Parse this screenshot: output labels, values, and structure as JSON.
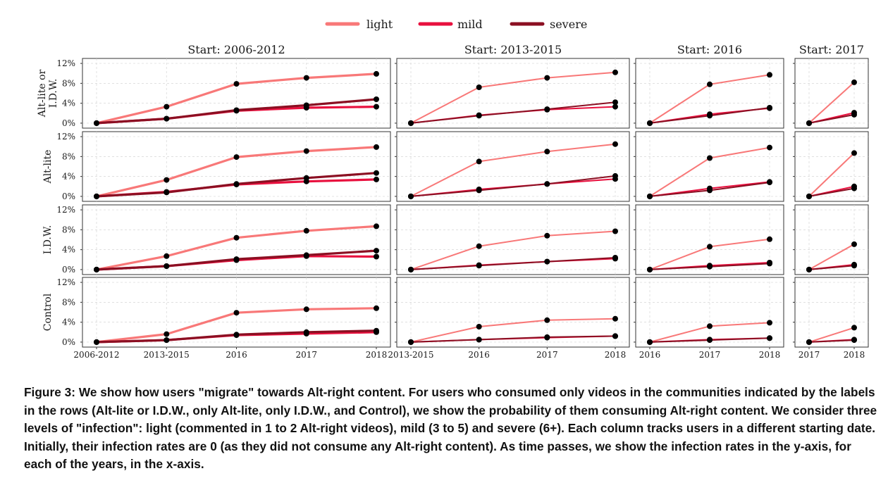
{
  "caption": "Figure 3: We show how users \"migrate\" towards Alt-right content. For users who consumed only videos in the communities indicated by the labels in the rows (Alt-lite or I.D.W., only Alt-lite, only I.D.W., and Control), we show the probability of them consuming Alt-right content. We consider three levels of \"infection\": light (commented in 1 to 2 Alt-right videos), mild (3 to 5) and severe (6+). Each column tracks users in a different starting date. Initially, their infection rates are 0 (as they did not consume any Alt-right content). As time passes, we show the infection rates in the y-axis, for each of the years, in the x-axis.",
  "chart_data": {
    "type": "line",
    "legend": {
      "position": "top",
      "entries": [
        {
          "label": "light",
          "color": "#f87878"
        },
        {
          "label": "mild",
          "color": "#e8103e"
        },
        {
          "label": "severe",
          "color": "#8b0f22"
        }
      ]
    },
    "grid": true,
    "x_categories": [
      "2006-2012",
      "2013-2015",
      "2016",
      "2017",
      "2018"
    ],
    "y_ticks": [
      "0%",
      "4%",
      "8%",
      "12%"
    ],
    "ylim": [
      -0.01,
      0.13
    ],
    "columns": [
      {
        "title": "Start: 2006-2012",
        "start": 0
      },
      {
        "title": "Start: 2013-2015",
        "start": 1
      },
      {
        "title": "Start: 2016",
        "start": 2
      },
      {
        "title": "Start: 2017",
        "start": 3
      }
    ],
    "rows": [
      {
        "label": "Alt-lite or\nI.D.W."
      },
      {
        "label": "Alt-lite"
      },
      {
        "label": "I.D.W."
      },
      {
        "label": "Control"
      }
    ],
    "panels": [
      [
        {
          "light": [
            0,
            0.033,
            0.079,
            0.091,
            0.099
          ],
          "mild": [
            0,
            0.009,
            0.025,
            0.031,
            0.033
          ],
          "severe": [
            0,
            0.009,
            0.026,
            0.036,
            0.048
          ]
        },
        {
          "light": [
            0,
            0.072,
            0.091,
            0.102
          ],
          "mild": [
            0,
            0.016,
            0.027,
            0.033
          ],
          "severe": [
            0,
            0.015,
            0.028,
            0.042
          ]
        },
        {
          "light": [
            0,
            0.078,
            0.097
          ],
          "mild": [
            0,
            0.018,
            0.03
          ],
          "severe": [
            0,
            0.015,
            0.031
          ]
        },
        {
          "light": [
            0,
            0.082
          ],
          "mild": [
            0,
            0.021
          ],
          "severe": [
            0,
            0.017
          ]
        }
      ],
      [
        {
          "light": [
            0,
            0.033,
            0.079,
            0.091,
            0.099
          ],
          "mild": [
            0,
            0.009,
            0.024,
            0.03,
            0.034
          ],
          "severe": [
            0,
            0.008,
            0.025,
            0.037,
            0.047
          ]
        },
        {
          "light": [
            0,
            0.07,
            0.09,
            0.105
          ],
          "mild": [
            0,
            0.014,
            0.025,
            0.035
          ],
          "severe": [
            0,
            0.012,
            0.025,
            0.041
          ]
        },
        {
          "light": [
            0,
            0.077,
            0.098
          ],
          "mild": [
            0,
            0.016,
            0.029
          ],
          "severe": [
            0,
            0.012,
            0.028
          ]
        },
        {
          "light": [
            0,
            0.087
          ],
          "mild": [
            0,
            0.02
          ],
          "severe": [
            0,
            0.016
          ]
        }
      ],
      [
        {
          "light": [
            0,
            0.027,
            0.064,
            0.078,
            0.087
          ],
          "mild": [
            0,
            0.007,
            0.019,
            0.027,
            0.026
          ],
          "severe": [
            0,
            0.007,
            0.021,
            0.029,
            0.038
          ]
        },
        {
          "light": [
            0,
            0.047,
            0.068,
            0.077
          ],
          "mild": [
            0,
            0.009,
            0.016,
            0.022
          ],
          "severe": [
            0,
            0.008,
            0.016,
            0.024
          ]
        },
        {
          "light": [
            0,
            0.046,
            0.061
          ],
          "mild": [
            0,
            0.008,
            0.014
          ],
          "severe": [
            0,
            0.006,
            0.012
          ]
        },
        {
          "light": [
            0,
            0.051
          ],
          "mild": [
            0,
            0.01
          ],
          "severe": [
            0,
            0.008
          ]
        }
      ],
      [
        {
          "light": [
            0,
            0.016,
            0.059,
            0.066,
            0.068
          ],
          "mild": [
            0,
            0.004,
            0.014,
            0.017,
            0.02
          ],
          "severe": [
            0,
            0.004,
            0.015,
            0.02,
            0.023
          ]
        },
        {
          "light": [
            0,
            0.031,
            0.044,
            0.047
          ],
          "mild": [
            0,
            0.005,
            0.009,
            0.012
          ],
          "severe": [
            0,
            0.005,
            0.01,
            0.012
          ]
        },
        {
          "light": [
            0,
            0.032,
            0.039
          ],
          "mild": [
            0,
            0.005,
            0.008
          ],
          "severe": [
            0,
            0.004,
            0.008
          ]
        },
        {
          "light": [
            0,
            0.029
          ],
          "mild": [
            0,
            0.005
          ],
          "severe": [
            0,
            0.004
          ]
        }
      ]
    ]
  }
}
